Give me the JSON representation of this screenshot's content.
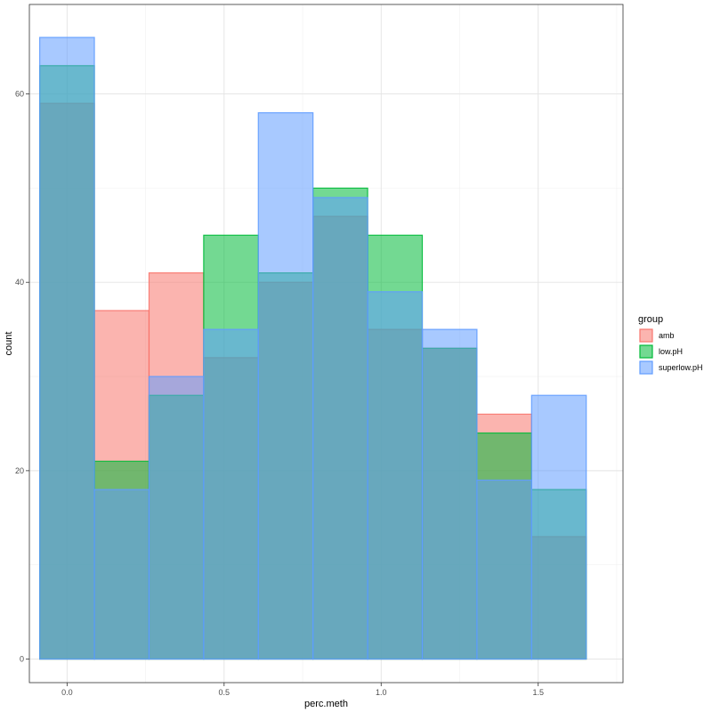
{
  "chart_data": {
    "type": "bar",
    "subtype": "histogram-overlay",
    "xlabel": "perc.meth",
    "ylabel": "count",
    "xlim": [
      -0.12,
      1.77
    ],
    "ylim": [
      -2.5,
      69.5
    ],
    "xticks": [
      0.0,
      0.5,
      1.0,
      1.5
    ],
    "xtick_labels": [
      "0.0",
      "0.5",
      "1.0",
      "1.5"
    ],
    "yticks": [
      0,
      20,
      40,
      60
    ],
    "ytick_labels": [
      "0",
      "20",
      "40",
      "60"
    ],
    "grid": true,
    "bin_edges": [
      -0.087,
      0.087,
      0.261,
      0.435,
      0.609,
      0.783,
      0.957,
      1.131,
      1.305,
      1.479,
      1.653
    ],
    "legend": {
      "title": "group",
      "position": "right"
    },
    "series": [
      {
        "name": "amb",
        "color": "#F8766D",
        "values": [
          59,
          37,
          41,
          32,
          40,
          47,
          35,
          33,
          26,
          13
        ]
      },
      {
        "name": "low.pH",
        "color": "#00BA38",
        "values": [
          63,
          21,
          28,
          45,
          41,
          50,
          45,
          33,
          24,
          18
        ]
      },
      {
        "name": "superlow.pH",
        "color": "#619CFF",
        "values": [
          66,
          18,
          30,
          35,
          58,
          49,
          39,
          35,
          19,
          28
        ]
      }
    ]
  }
}
